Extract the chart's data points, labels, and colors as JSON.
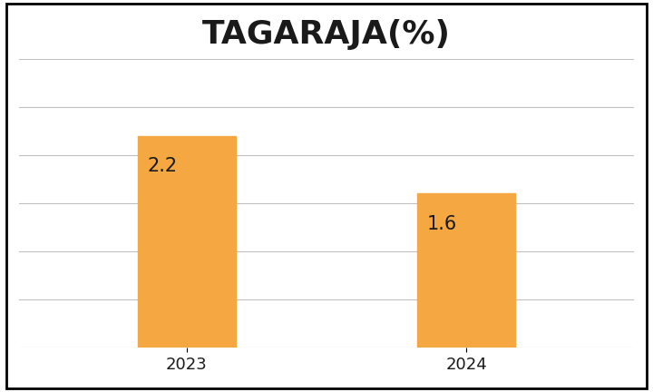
{
  "title": "TAGARAJA(%)",
  "categories": [
    "2023",
    "2024"
  ],
  "values": [
    2.2,
    1.6
  ],
  "bar_color": "#F5A742",
  "bar_width": 0.35,
  "label_fontsize": 15,
  "title_fontsize": 26,
  "tick_fontsize": 13,
  "ylim": [
    0,
    3.0
  ],
  "yticks": [
    0.0,
    0.5,
    1.0,
    1.5,
    2.0,
    2.5,
    3.0
  ],
  "background_color": "#ffffff",
  "grid_color": "#c0c0c0",
  "text_color": "#1a1a1a",
  "border_color": "#000000"
}
